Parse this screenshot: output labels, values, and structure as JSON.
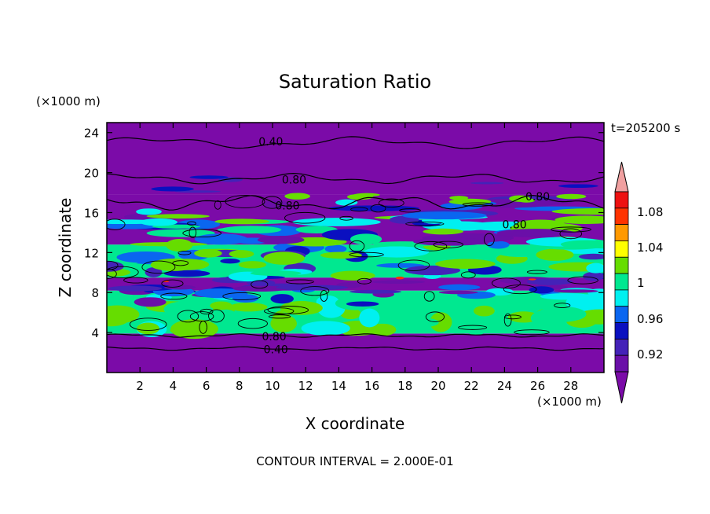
{
  "chart_data": {
    "type": "contour",
    "title": "Saturation Ratio",
    "xlabel": "X coordinate",
    "ylabel": "Z coordinate",
    "x_unit": "(×1000 m)",
    "y_unit": "(×1000 m)",
    "xlim": [
      0,
      30
    ],
    "ylim": [
      0,
      25
    ],
    "x_ticks": [
      2,
      4,
      6,
      8,
      10,
      12,
      14,
      16,
      18,
      20,
      22,
      24,
      26,
      28
    ],
    "y_ticks": [
      4,
      8,
      12,
      16,
      20,
      24
    ],
    "time_label": "t=205200 s",
    "footer": "CONTOUR INTERVAL = 2.000E-01",
    "colorbar": {
      "tick_labels": [
        "0.92",
        "0.96",
        "1",
        "1.04",
        "1.08"
      ],
      "levels": [
        0.92,
        0.94,
        0.96,
        0.98,
        1.0,
        1.02,
        1.04,
        1.06,
        1.08,
        1.1
      ],
      "colors": [
        "#6a0fa8",
        "#4422b8",
        "#0a10c0",
        "#0a66f0",
        "#00f0f0",
        "#00e890",
        "#66dd00",
        "#ffff00",
        "#ff9900",
        "#ff3300",
        "#ee1111",
        "#f0a0a0"
      ],
      "under_color": "#7b0ba8",
      "over_color": "#f0a0a0"
    },
    "contour_labels": [
      {
        "value": "0.40",
        "x": 9.9,
        "z": 23.1
      },
      {
        "value": "0.80",
        "x": 11.3,
        "z": 19.3
      },
      {
        "value": "0.80",
        "x": 10.9,
        "z": 16.7
      },
      {
        "value": "0.80",
        "x": 26.0,
        "z": 17.6
      },
      {
        "value": "0.80",
        "x": 24.6,
        "z": 14.8
      },
      {
        "value": "0.80",
        "x": 10.1,
        "z": 3.6
      },
      {
        "value": "0.40",
        "x": 10.2,
        "z": 2.3
      }
    ],
    "bands": [
      {
        "z": [
          0.0,
          3.9
        ],
        "color": "#7b0ba8"
      },
      {
        "z": [
          3.9,
          8.2
        ],
        "color": "#00e890"
      },
      {
        "z": [
          8.2,
          9.5
        ],
        "color": "#7b0ba8"
      },
      {
        "z": [
          9.5,
          12.8
        ],
        "color": "#00e890"
      },
      {
        "z": [
          12.8,
          17.8
        ],
        "color": "#7b0ba8"
      },
      {
        "z": [
          17.8,
          25.0
        ],
        "color": "#7b0ba8"
      }
    ]
  }
}
